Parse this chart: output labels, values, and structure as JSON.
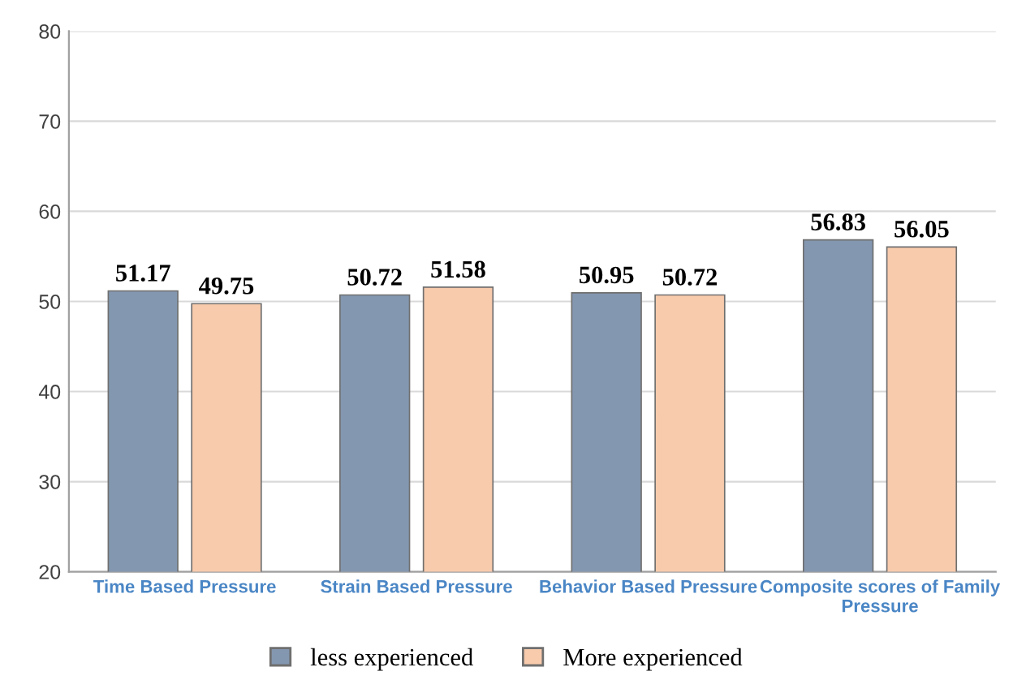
{
  "chart_data": {
    "type": "bar",
    "categories": [
      "Time Based Pressure",
      "Strain Based Pressure",
      "Behavior Based Pressure",
      "Composite scores of Family Pressure"
    ],
    "series": [
      {
        "name": "less experienced",
        "color": "#8497b0",
        "values": [
          51.17,
          50.72,
          50.95,
          56.83
        ]
      },
      {
        "name": "More experienced",
        "color": "#f8cbad",
        "values": [
          49.75,
          51.58,
          50.72,
          56.05
        ]
      }
    ],
    "ylim": [
      20,
      80
    ],
    "yticks": [
      20,
      30,
      40,
      50,
      60,
      70,
      80
    ],
    "grid": "y",
    "legend": "bottom",
    "data_labels": true
  }
}
